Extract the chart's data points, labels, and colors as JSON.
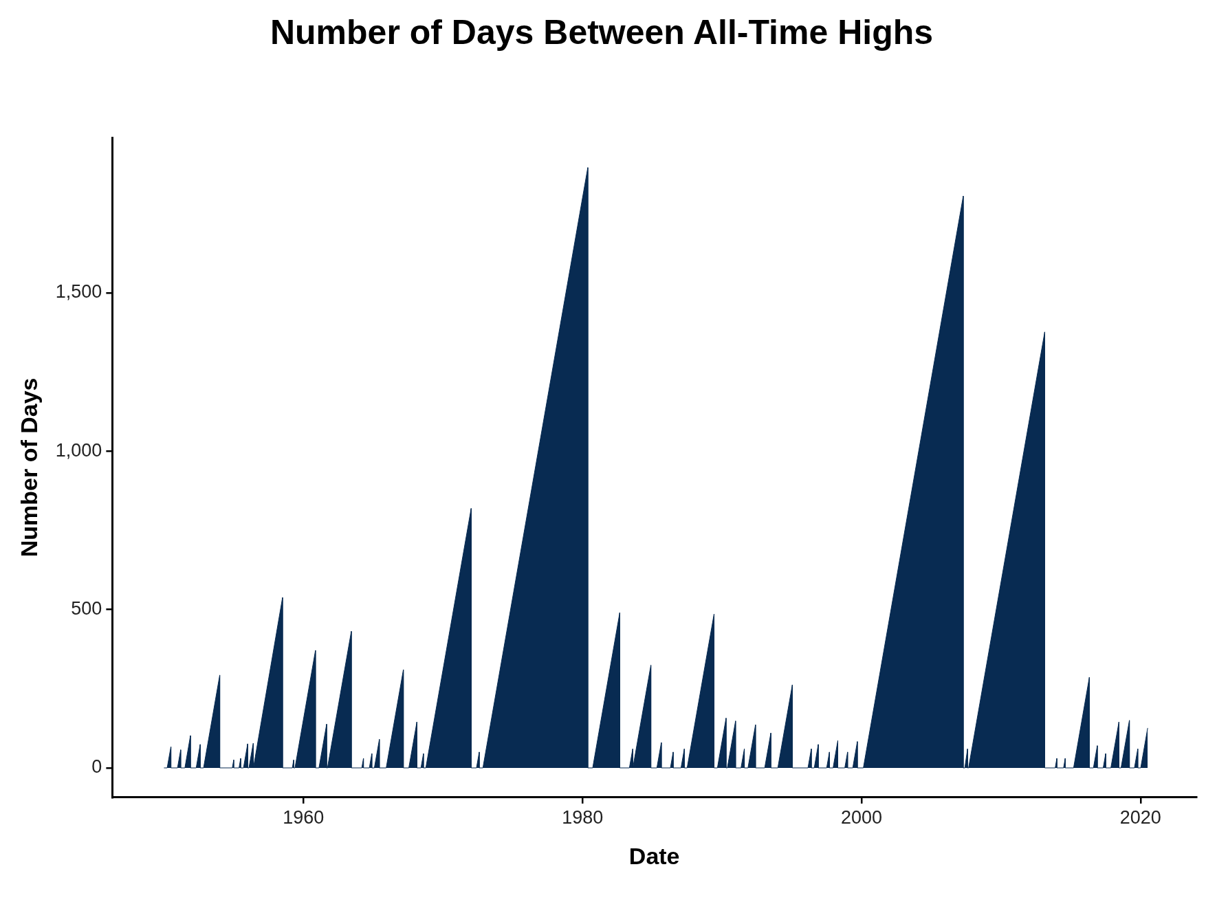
{
  "chart_data": {
    "type": "area",
    "title": "Number of Days Between All-Time Highs",
    "xlabel": "Date",
    "ylabel": "Number of Days",
    "color": "#082b52",
    "grid": false,
    "legend": false,
    "xlim": [
      1946.3,
      2024
    ],
    "xticks": [
      1960,
      1980,
      2000,
      2020
    ],
    "ylim": [
      -93,
      1990
    ],
    "yticks": [
      0,
      500,
      {
        "value": 1000,
        "label": "1,000"
      },
      {
        "value": 1500,
        "label": "1,500"
      }
    ],
    "x": [
      1950.0,
      1950.23,
      1950.5,
      1950.5,
      1950.97,
      1951.2,
      1951.2,
      1951.5,
      1951.9,
      1951.9,
      1952.31,
      1952.6,
      1952.6,
      1952.84,
      1954.0,
      1954.0,
      1954.9,
      1955.0,
      1955.0,
      1955.38,
      1955.5,
      1955.5,
      1955.7,
      1956.0,
      1956.0,
      1956.09,
      1956.4,
      1956.4,
      1956.42,
      1958.5,
      1958.5,
      1959.2,
      1959.3,
      1959.3,
      1959.39,
      1960.86,
      1960.86,
      1961.11,
      1961.66,
      1961.66,
      1961.72,
      1963.43,
      1963.43,
      1964.18,
      1964.3,
      1964.3,
      1964.72,
      1964.9,
      1964.9,
      1965.08,
      1965.44,
      1965.44,
      1965.93,
      1967.16,
      1967.16,
      1967.55,
      1968.13,
      1968.13,
      1968.42,
      1968.6,
      1968.6,
      1968.77,
      1972.02,
      1972.02,
      1972.4,
      1972.6,
      1972.6,
      1972.86,
      1980.38,
      1980.38,
      1980.73,
      1982.67,
      1982.67,
      1983.36,
      1983.6,
      1983.6,
      1983.62,
      1984.9,
      1984.9,
      1985.33,
      1985.65,
      1985.65,
      1986.3,
      1986.5,
      1986.5,
      1987.06,
      1987.3,
      1987.3,
      1987.5,
      1989.43,
      1989.43,
      1989.67,
      1990.29,
      1990.29,
      1990.38,
      1990.97,
      1990.97,
      1991.36,
      1991.6,
      1991.6,
      1991.86,
      1992.4,
      1992.4,
      1993.06,
      1993.5,
      1993.5,
      1994.0,
      1995.04,
      1995.04,
      1996.16,
      1996.4,
      1996.4,
      1996.61,
      1996.9,
      1996.9,
      1997.5,
      1997.7,
      1997.7,
      1997.96,
      1998.3,
      1998.3,
      1998.8,
      1999.0,
      1999.0,
      1999.37,
      1999.7,
      1999.7,
      2000.13,
      2007.29,
      2007.29,
      2007.4,
      2007.6,
      2007.6,
      2007.67,
      2013.13,
      2013.13,
      2013.88,
      2014.0,
      2014.0,
      2014.48,
      2014.6,
      2014.6,
      2015.2,
      2016.33,
      2016.33,
      2016.62,
      2016.9,
      2016.9,
      2017.32,
      2017.5,
      2017.5,
      2017.87,
      2018.45,
      2018.45,
      2018.6,
      2019.2,
      2019.2,
      2019.56,
      2019.8,
      2019.8,
      2020.01,
      2020.51
    ],
    "values": [
      0,
      0,
      67,
      0,
      0,
      57,
      0,
      0,
      102,
      0,
      0,
      74,
      0,
      0,
      293,
      0,
      0,
      25,
      0,
      0,
      30,
      0,
      0,
      76,
      0,
      0,
      78,
      0,
      0,
      538,
      0,
      0,
      25,
      0,
      0,
      371,
      0,
      0,
      138,
      0,
      0,
      431,
      0,
      0,
      30,
      0,
      0,
      45,
      0,
      0,
      90,
      0,
      0,
      310,
      0,
      0,
      145,
      0,
      0,
      45,
      0,
      0,
      819,
      0,
      0,
      50,
      0,
      0,
      1895,
      0,
      0,
      490,
      0,
      0,
      60,
      0,
      0,
      324,
      0,
      0,
      80,
      0,
      0,
      50,
      0,
      0,
      60,
      0,
      0,
      486,
      0,
      0,
      157,
      0,
      0,
      148,
      0,
      0,
      60,
      0,
      0,
      136,
      0,
      0,
      110,
      0,
      0,
      262,
      0,
      0,
      60,
      0,
      0,
      74,
      0,
      0,
      50,
      0,
      0,
      86,
      0,
      0,
      50,
      0,
      0,
      83,
      0,
      0,
      1805,
      0,
      0,
      60,
      0,
      0,
      1376,
      0,
      0,
      30,
      0,
      0,
      30,
      0,
      0,
      286,
      0,
      0,
      70,
      0,
      0,
      45,
      0,
      0,
      145,
      0,
      0,
      150,
      0,
      0,
      60,
      0,
      0,
      126
    ]
  }
}
